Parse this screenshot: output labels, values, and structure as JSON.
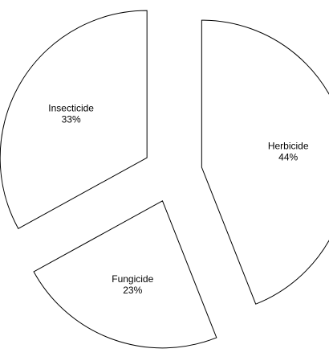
{
  "chart_data": {
    "type": "pie",
    "categories": [
      "Herbicide",
      "Fungicide",
      "Insecticide"
    ],
    "values": [
      44,
      23,
      33
    ],
    "value_labels": [
      "44%",
      "23%",
      "33%"
    ],
    "color": "#ffffff",
    "edge_color": "#000000",
    "exploded": true
  }
}
